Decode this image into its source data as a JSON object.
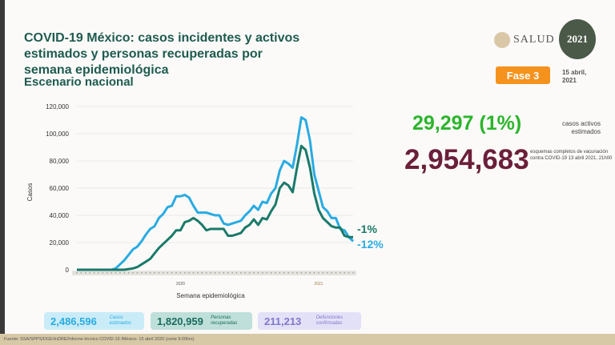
{
  "header": {
    "title": "COVID-19 México: casos incidentes y activos estimados y personas recuperadas por semana epidemiológica",
    "subtitle": "Escenario nacional",
    "logo_text": "SALUD",
    "logo_year": "2021",
    "phase": "Fase 3",
    "date": "15 abril, 2021"
  },
  "stats": {
    "active_cases": "29,297 (1%)",
    "active_label": "casos activos estimados",
    "vaccination": "2,954,683",
    "vaccination_label": "esquemas completos de vacunación contra COVID-19 13 abril 2021, 21h00"
  },
  "colors": {
    "estimated": "#29abe2",
    "active": "#1a7a6a",
    "accent": "#f5921e"
  },
  "chart_data": {
    "type": "line",
    "xlabel": "Semana epidemiológica",
    "ylabel": "Casos",
    "ylim": [
      0,
      120000
    ],
    "yticks": [
      "0",
      "20,000",
      "40,000",
      "60,000",
      "80,000",
      "100,000",
      "120,000"
    ],
    "x_year_labels": [
      "2020",
      "2021"
    ],
    "grid": true,
    "series": [
      {
        "name": "",
        "color": "#29abe2",
        "end_label": "-12%",
        "values": [
          0,
          0,
          0,
          0,
          0,
          0,
          0,
          0,
          0,
          1000,
          4000,
          7000,
          11000,
          15000,
          17000,
          21000,
          26000,
          30000,
          32000,
          38000,
          41000,
          46000,
          47000,
          54000,
          54000,
          55000,
          53000,
          47000,
          42000,
          42000,
          42000,
          41000,
          40000,
          40000,
          34000,
          33000,
          34000,
          35000,
          36000,
          40000,
          43000,
          47000,
          44000,
          50000,
          49000,
          56000,
          60000,
          73000,
          80000,
          78000,
          75000,
          92000,
          112000,
          110000,
          95000,
          70000,
          58000,
          46000,
          43000,
          38000,
          38000,
          30000,
          29000,
          24000,
          21000
        ]
      },
      {
        "name": "",
        "color": "#1a7a6a",
        "end_label": "-1%",
        "values": [
          0,
          0,
          0,
          0,
          0,
          0,
          0,
          0,
          0,
          0,
          0,
          0,
          500,
          1000,
          2000,
          4000,
          6000,
          8000,
          12000,
          16000,
          19000,
          22000,
          25000,
          29000,
          29000,
          35000,
          36000,
          38000,
          36000,
          33000,
          29000,
          30000,
          30000,
          30000,
          30000,
          25000,
          25000,
          26000,
          27000,
          31000,
          33000,
          37000,
          33000,
          38000,
          37000,
          43000,
          48000,
          60000,
          64000,
          62000,
          57000,
          75000,
          91000,
          88000,
          75000,
          56000,
          44000,
          38000,
          35000,
          32000,
          31000,
          31000,
          25000,
          24000,
          24000
        ]
      }
    ]
  },
  "summary": [
    {
      "value": "2,486,596",
      "label": "Casos estimados"
    },
    {
      "value": "1,820,959",
      "label": "Personas recuperadas"
    },
    {
      "value": "211,213",
      "label": "Defunciones confirmadas"
    }
  ],
  "footer": "Fuente: SSA/SPPS/DGE/InDRE/Informe técnico COVID-19 /México- 15 abril 2020 (corte 9:00hrs)"
}
